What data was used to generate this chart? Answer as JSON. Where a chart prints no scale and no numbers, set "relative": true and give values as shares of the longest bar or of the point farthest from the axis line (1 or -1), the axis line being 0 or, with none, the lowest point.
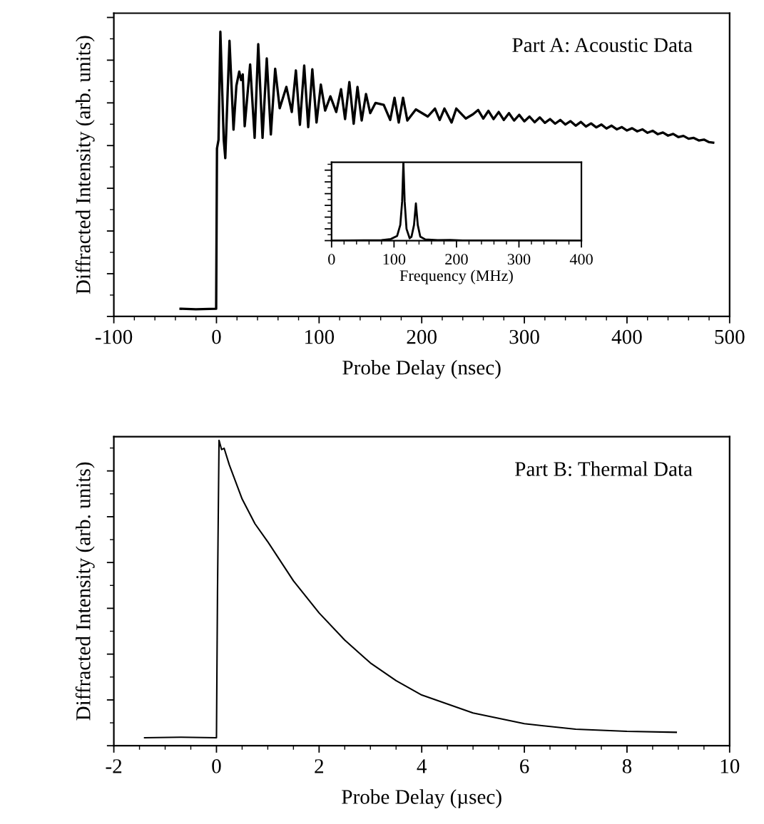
{
  "chart_data": [
    {
      "type": "line",
      "relative": true,
      "xlabel": "Probe Delay (nsec)",
      "ylabel": "Diffracted Intensity (arb. units)",
      "annotations": [
        "Part A: Acoustic Data"
      ],
      "xlim": [
        -100,
        500
      ],
      "xticks": [
        -100,
        0,
        100,
        200,
        300,
        400,
        500
      ],
      "tick_labels": "x",
      "grid": false,
      "legend": false,
      "marker": "none",
      "line_style": "solid",
      "series": [
        {
          "color": "#000000",
          "x": [
            -35,
            -20,
            -0.3,
            0.5,
            2,
            3.8,
            7.1,
            8.6,
            12.7,
            16.6,
            19.4,
            22.2,
            24,
            25.6,
            27.5,
            32.8,
            37.2,
            40.7,
            44.9,
            49.0,
            53.0,
            57.2,
            61.6,
            68.1,
            73.4,
            77.4,
            81.3,
            85.5,
            89.4,
            93.4,
            97.5,
            101.7,
            105.9,
            111,
            116.7,
            121.4,
            125.3,
            129.5,
            133.7,
            137.4,
            141.5,
            145.7,
            149.8,
            155,
            163,
            169.3,
            173.5,
            177.6,
            181.8,
            186,
            194.3,
            205.9,
            212.9,
            217.5,
            222.1,
            229.1,
            233.7,
            243,
            250,
            255,
            260,
            265,
            270,
            275,
            280,
            285,
            290,
            295,
            300,
            305,
            310,
            315,
            320,
            325,
            330,
            335,
            340,
            345,
            350,
            355,
            360,
            365,
            370,
            375,
            380,
            385,
            390,
            395,
            400,
            405,
            410,
            415,
            420,
            425,
            430,
            435,
            440,
            445,
            450,
            455,
            460,
            465,
            470,
            475,
            480,
            484
          ],
          "values": [
            0.027,
            0.025,
            0.027,
            0.59,
            0.62,
            1.0,
            0.62,
            0.556,
            0.968,
            0.656,
            0.81,
            0.86,
            0.83,
            0.85,
            0.668,
            0.885,
            0.627,
            0.956,
            0.627,
            0.906,
            0.639,
            0.87,
            0.731,
            0.806,
            0.718,
            0.864,
            0.673,
            0.881,
            0.665,
            0.868,
            0.681,
            0.814,
            0.723,
            0.773,
            0.718,
            0.798,
            0.693,
            0.823,
            0.677,
            0.806,
            0.688,
            0.781,
            0.714,
            0.75,
            0.743,
            0.69,
            0.768,
            0.681,
            0.768,
            0.688,
            0.727,
            0.702,
            0.73,
            0.69,
            0.73,
            0.681,
            0.73,
            0.695,
            0.71,
            0.725,
            0.695,
            0.722,
            0.693,
            0.718,
            0.69,
            0.714,
            0.688,
            0.708,
            0.685,
            0.702,
            0.682,
            0.699,
            0.68,
            0.693,
            0.677,
            0.69,
            0.674,
            0.686,
            0.67,
            0.683,
            0.667,
            0.678,
            0.664,
            0.674,
            0.66,
            0.67,
            0.657,
            0.665,
            0.653,
            0.661,
            0.65,
            0.657,
            0.645,
            0.652,
            0.64,
            0.646,
            0.635,
            0.641,
            0.63,
            0.634,
            0.624,
            0.627,
            0.618,
            0.621,
            0.612,
            0.61
          ]
        }
      ]
    },
    {
      "type": "line",
      "relative": true,
      "xlabel": "Frequency (MHz)",
      "xlim": [
        0,
        400
      ],
      "xticks": [
        0,
        100,
        200,
        300,
        400
      ],
      "tick_labels": "x",
      "grid": false,
      "legend": false,
      "marker": "none",
      "line_style": "solid",
      "series": [
        {
          "color": "#000000",
          "x": [
            0,
            80,
            95,
            105,
            110,
            113,
            115,
            117,
            120,
            125,
            128,
            132,
            135,
            138,
            142,
            150,
            170,
            190,
            210,
            400
          ],
          "values": [
            0,
            0.005,
            0.02,
            0.06,
            0.2,
            0.5,
            1.0,
            0.5,
            0.15,
            0.03,
            0.05,
            0.2,
            0.476,
            0.2,
            0.05,
            0.015,
            0.005,
            0.008,
            0.002,
            0
          ]
        }
      ]
    },
    {
      "type": "line",
      "relative": true,
      "xlabel": "Probe Delay (µsec)",
      "ylabel": "Diffracted Intensity (arb. units)",
      "annotations": [
        "Part B: Thermal Data"
      ],
      "xlim": [
        -2,
        10
      ],
      "xticks": [
        -2,
        0,
        2,
        4,
        6,
        8,
        10
      ],
      "tick_labels": "x",
      "grid": false,
      "legend": false,
      "marker": "none",
      "line_style": "solid",
      "series": [
        {
          "color": "#000000",
          "x": [
            -1.4,
            -0.7,
            0,
            0.02,
            0.05,
            0.1,
            0.15,
            0.25,
            0.5,
            0.75,
            1,
            1.5,
            2,
            2.5,
            3,
            3.5,
            4,
            5,
            6,
            7,
            8,
            8.96
          ],
          "values": [
            0.026,
            0.028,
            0.026,
            0.5,
            1.0,
            0.97,
            0.974,
            0.92,
            0.808,
            0.727,
            0.668,
            0.54,
            0.435,
            0.346,
            0.271,
            0.213,
            0.166,
            0.107,
            0.072,
            0.054,
            0.047,
            0.044
          ]
        }
      ]
    }
  ]
}
